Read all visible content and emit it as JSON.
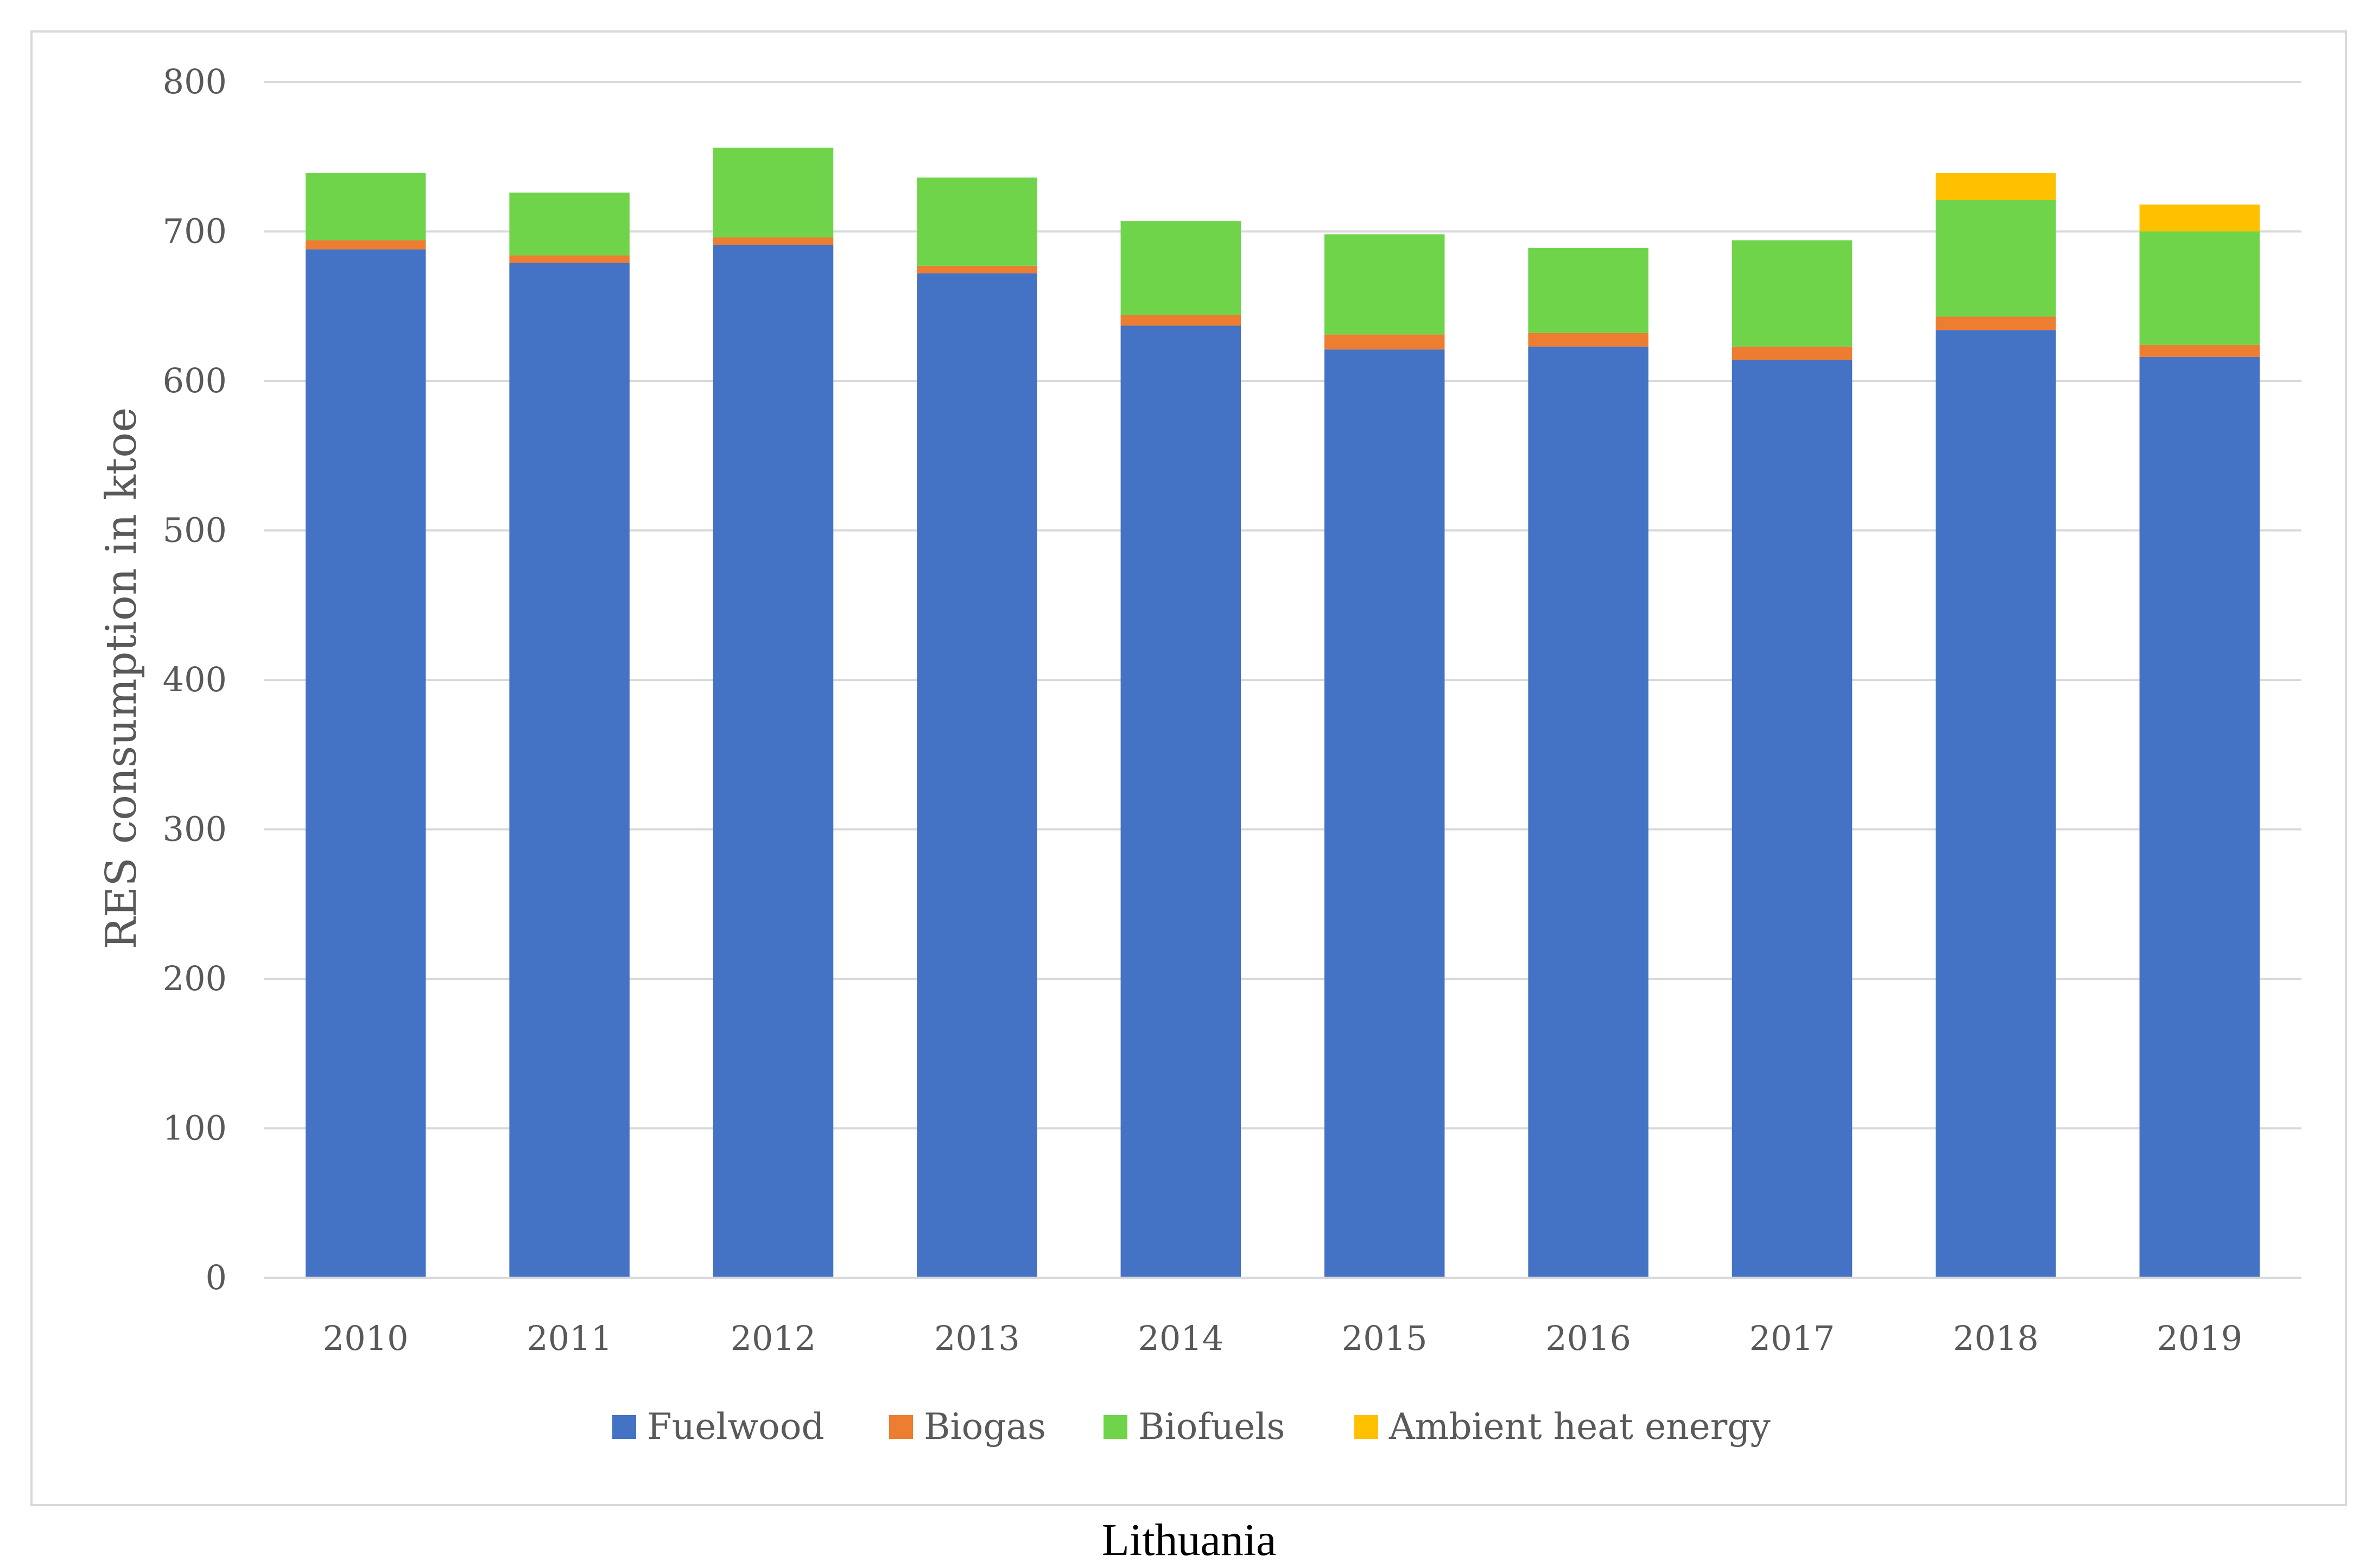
{
  "colors": {
    "Fuelwood": "#4472c4",
    "Biogas": "#ed7d31",
    "Biofuels": "#70d44b",
    "Ambient heat energy": "#ffc000",
    "gridline": "#d9d9d9",
    "text": "#595959"
  },
  "caption": "Lithuania",
  "chart_data": {
    "type": "bar",
    "stacked": true,
    "title": "",
    "xlabel": "",
    "ylabel": "RES consumption in ktoe",
    "ylim": [
      0,
      800
    ],
    "yticks": [
      0,
      100,
      200,
      300,
      400,
      500,
      600,
      700,
      800
    ],
    "grid": true,
    "legend_position": "bottom",
    "categories": [
      "2010",
      "2011",
      "2012",
      "2013",
      "2014",
      "2015",
      "2016",
      "2017",
      "2018",
      "2019"
    ],
    "series": [
      {
        "name": "Fuelwood",
        "values": [
          688,
          679,
          691,
          672,
          637,
          621,
          623,
          614,
          634,
          616
        ]
      },
      {
        "name": "Biogas",
        "values": [
          6,
          5,
          5,
          5,
          7,
          10,
          9,
          9,
          9,
          8
        ]
      },
      {
        "name": "Biofuels",
        "values": [
          45,
          42,
          60,
          59,
          63,
          67,
          57,
          71,
          78,
          76
        ]
      },
      {
        "name": "Ambient heat energy",
        "values": [
          0,
          0,
          0,
          0,
          0,
          0,
          0,
          0,
          18,
          18
        ]
      }
    ]
  }
}
